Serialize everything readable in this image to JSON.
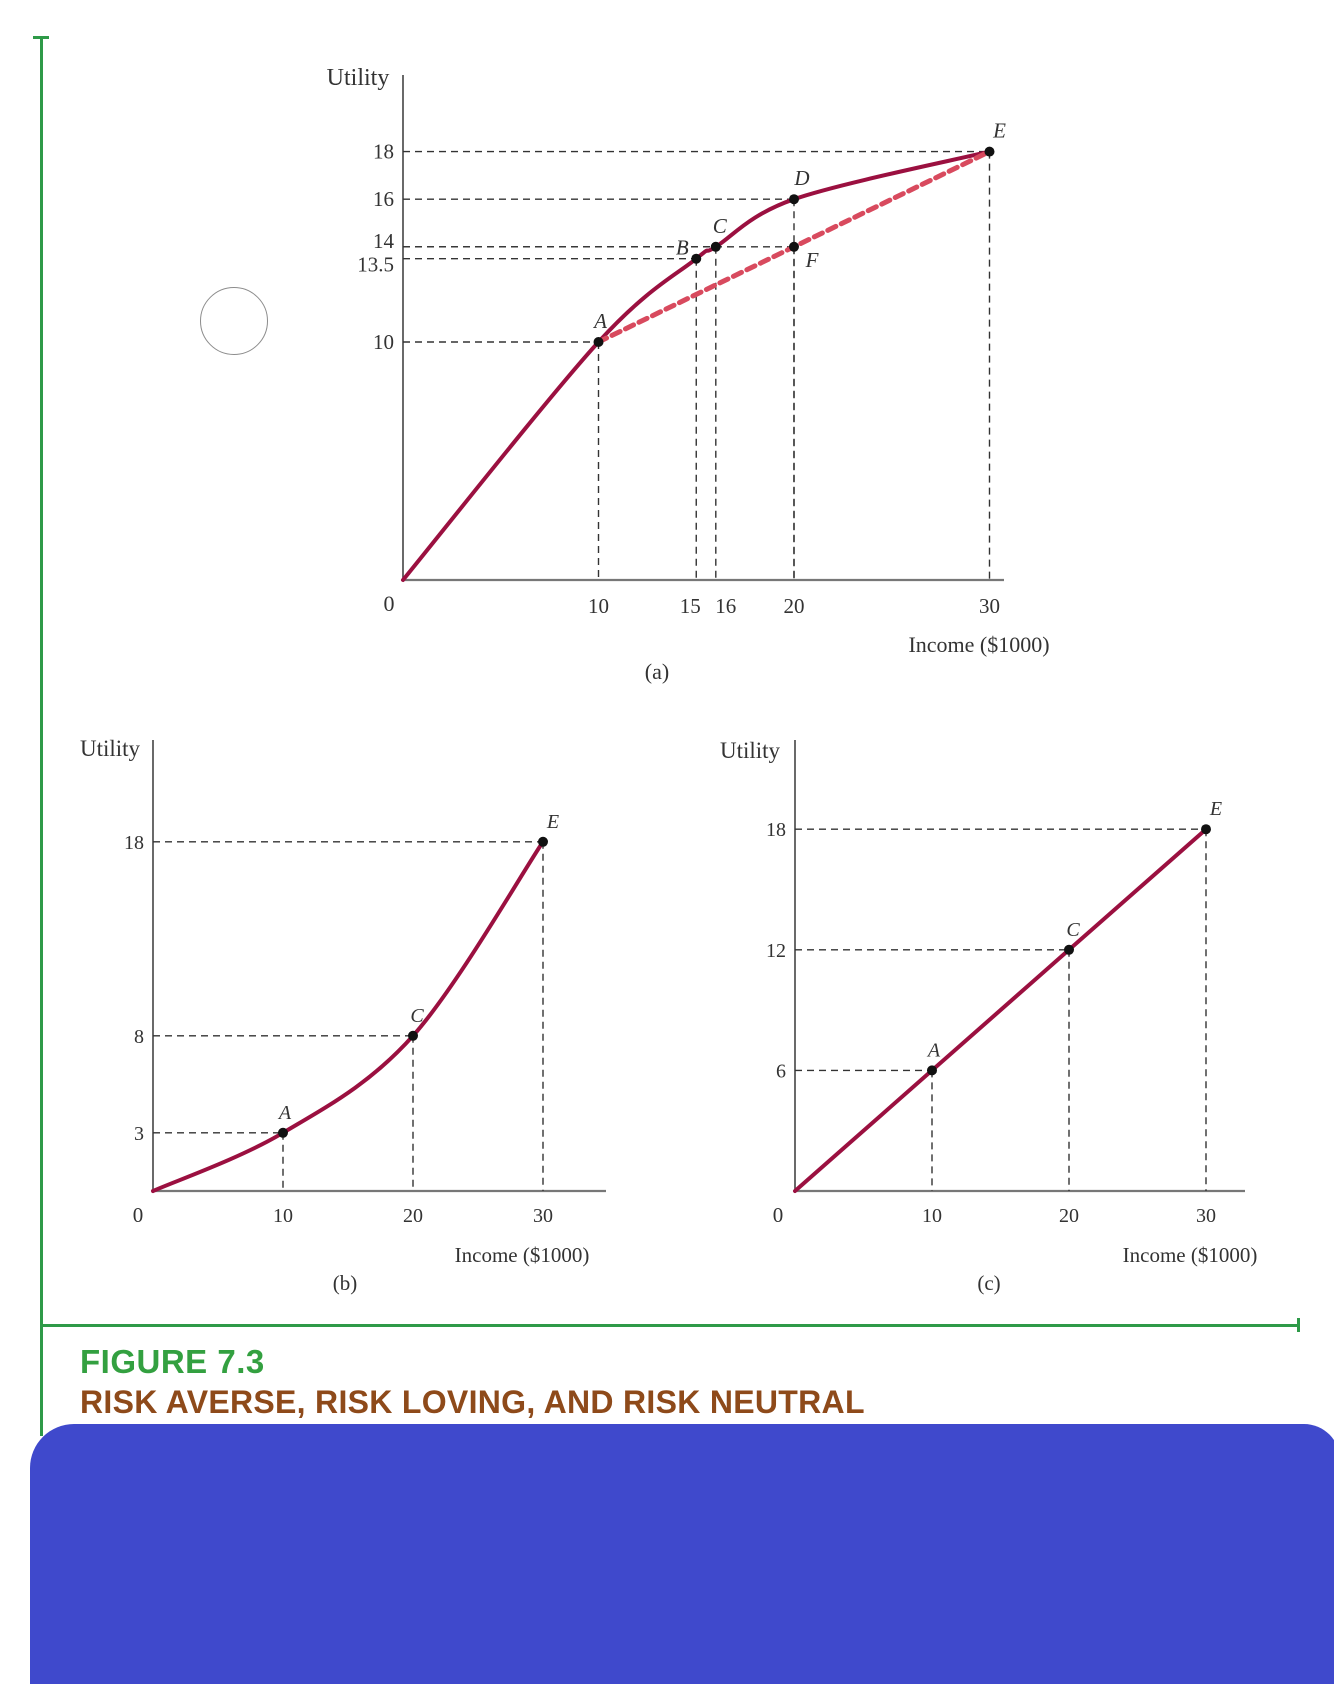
{
  "figure": {
    "label": "FIGURE 7.3",
    "title": "RISK AVERSE, RISK LOVING, AND RISK NEUTRAL"
  },
  "colors": {
    "curve": "#9b1040",
    "chord": "#d84a5e",
    "frame": "#2e9a48",
    "figure_label": "#33a040",
    "figure_title": "#8e4a1a",
    "redaction": "#3f49cc"
  },
  "chart_data": [
    {
      "panel": "(a)",
      "type": "line",
      "ylabel": "Utility",
      "xlabel": "Income ($1000)",
      "xlim": [
        0,
        30
      ],
      "ylim": [
        0,
        18
      ],
      "x_ticks": [
        "10",
        "15",
        "16",
        "20",
        "30"
      ],
      "x_tick_values": [
        10,
        15,
        16,
        20,
        30
      ],
      "y_ticks": [
        "10",
        "13.5",
        "14",
        "16",
        "18"
      ],
      "y_tick_values": [
        10,
        13.5,
        14,
        16,
        18
      ],
      "origin_label": "0",
      "series": [
        {
          "style": "solid",
          "x": [
            0,
            10,
            15,
            16,
            20,
            30
          ],
          "y": [
            0,
            10,
            13.5,
            14,
            16,
            18
          ]
        },
        {
          "style": "dashed",
          "x": [
            10,
            30
          ],
          "y": [
            10,
            18
          ]
        }
      ],
      "points": [
        {
          "label": "A",
          "x": 10,
          "y": 10
        },
        {
          "label": "B",
          "x": 15,
          "y": 13.5
        },
        {
          "label": "C",
          "x": 16,
          "y": 14
        },
        {
          "label": "D",
          "x": 20,
          "y": 16
        },
        {
          "label": "F",
          "x": 20,
          "y": 14
        },
        {
          "label": "E",
          "x": 30,
          "y": 18
        }
      ]
    },
    {
      "panel": "(b)",
      "type": "line",
      "ylabel": "Utility",
      "xlabel": "Income ($1000)",
      "xlim": [
        0,
        30
      ],
      "ylim": [
        0,
        18
      ],
      "x_ticks": [
        "10",
        "20",
        "30"
      ],
      "x_tick_values": [
        10,
        20,
        30
      ],
      "y_ticks": [
        "3",
        "8",
        "18"
      ],
      "y_tick_values": [
        3,
        8,
        18
      ],
      "origin_label": "0",
      "series": [
        {
          "style": "solid",
          "x": [
            0,
            10,
            20,
            30
          ],
          "y": [
            0,
            3,
            8,
            18
          ]
        }
      ],
      "points": [
        {
          "label": "A",
          "x": 10,
          "y": 3
        },
        {
          "label": "C",
          "x": 20,
          "y": 8
        },
        {
          "label": "E",
          "x": 30,
          "y": 18
        }
      ]
    },
    {
      "panel": "(c)",
      "type": "line",
      "ylabel": "Utility",
      "xlabel": "Income ($1000)",
      "xlim": [
        0,
        30
      ],
      "ylim": [
        0,
        18
      ],
      "x_ticks": [
        "10",
        "20",
        "30"
      ],
      "x_tick_values": [
        10,
        20,
        30
      ],
      "y_ticks": [
        "6",
        "12",
        "18"
      ],
      "y_tick_values": [
        6,
        12,
        18
      ],
      "origin_label": "0",
      "series": [
        {
          "style": "solid",
          "x": [
            0,
            10,
            20,
            30
          ],
          "y": [
            0,
            6,
            12,
            18
          ]
        }
      ],
      "points": [
        {
          "label": "A",
          "x": 10,
          "y": 6
        },
        {
          "label": "C",
          "x": 20,
          "y": 12
        },
        {
          "label": "E",
          "x": 30,
          "y": 18
        }
      ]
    }
  ]
}
